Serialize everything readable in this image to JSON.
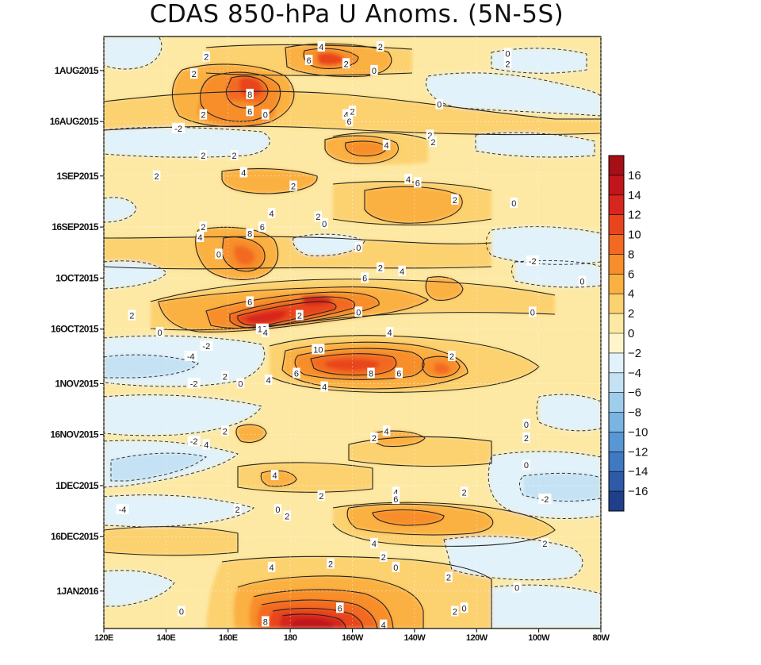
{
  "chart_data": {
    "type": "heatmap",
    "title": "CDAS 850-hPa U Anoms. (5N-5S)",
    "xlabel": "",
    "ylabel": "",
    "x_ticks": [
      "120E",
      "140E",
      "160E",
      "180",
      "160W",
      "140W",
      "120W",
      "100W",
      "80W"
    ],
    "x_range_deg_east": [
      120,
      280
    ],
    "y_ticks": [
      "1AUG2015",
      "16AUG2015",
      "1SEP2015",
      "16SEP2015",
      "1OCT2015",
      "16OCT2015",
      "1NOV2015",
      "16NOV2015",
      "1DEC2015",
      "16DEC2015",
      "1JAN2016"
    ],
    "y_range": [
      "2015-07-22",
      "2016-01-12"
    ],
    "colorbar": {
      "levels": [
        16,
        14,
        12,
        10,
        8,
        6,
        4,
        2,
        0,
        -2,
        -4,
        -6,
        -8,
        -10,
        -12,
        -14,
        -16
      ],
      "colors": [
        "#a50f15",
        "#c0161b",
        "#d7261e",
        "#e8451f",
        "#f26a22",
        "#f78e2c",
        "#fbb042",
        "#fcd170",
        "#fde9a4",
        "#fff5cc",
        "#e2f2fa",
        "#c4e2f3",
        "#9fcdec",
        "#79b4e2",
        "#5897d4",
        "#3f79c2",
        "#2e5aa8",
        "#203f8b"
      ]
    },
    "contour_labels": [
      {
        "text": "4",
        "lon": 190,
        "date": "2015-07-25"
      },
      {
        "text": "2",
        "lon": 209,
        "date": "2015-07-25"
      },
      {
        "text": "2",
        "lon": 153,
        "date": "2015-07-28"
      },
      {
        "text": "6",
        "lon": 186,
        "date": "2015-07-29"
      },
      {
        "text": "0",
        "lon": 250,
        "date": "2015-07-27"
      },
      {
        "text": "2",
        "lon": 250,
        "date": "2015-07-30"
      },
      {
        "text": "2",
        "lon": 198,
        "date": "2015-07-30"
      },
      {
        "text": "0",
        "lon": 207,
        "date": "2015-08-01"
      },
      {
        "text": "2",
        "lon": 149,
        "date": "2015-08-02"
      },
      {
        "text": "8",
        "lon": 167,
        "date": "2015-08-08"
      },
      {
        "text": "0",
        "lon": 228,
        "date": "2015-08-11"
      },
      {
        "text": "6",
        "lon": 167,
        "date": "2015-08-13"
      },
      {
        "text": "0",
        "lon": 172,
        "date": "2015-08-14"
      },
      {
        "text": "2",
        "lon": 152,
        "date": "2015-08-14"
      },
      {
        "text": "4",
        "lon": 198,
        "date": "2015-08-14"
      },
      {
        "text": "2",
        "lon": 200,
        "date": "2015-08-13"
      },
      {
        "text": "6",
        "lon": 199,
        "date": "2015-08-16"
      },
      {
        "text": "-2",
        "lon": 144,
        "date": "2015-08-18"
      },
      {
        "text": "2",
        "lon": 225,
        "date": "2015-08-20"
      },
      {
        "text": "2",
        "lon": 226,
        "date": "2015-08-22"
      },
      {
        "text": "4",
        "lon": 211,
        "date": "2015-08-23"
      },
      {
        "text": "2",
        "lon": 152,
        "date": "2015-08-26"
      },
      {
        "text": "2",
        "lon": 162,
        "date": "2015-08-26"
      },
      {
        "text": "4",
        "lon": 165,
        "date": "2015-08-31"
      },
      {
        "text": "2",
        "lon": 137,
        "date": "2015-09-01"
      },
      {
        "text": "4",
        "lon": 218,
        "date": "2015-09-02"
      },
      {
        "text": "6",
        "lon": 221,
        "date": "2015-09-03"
      },
      {
        "text": "2",
        "lon": 181,
        "date": "2015-09-04"
      },
      {
        "text": "2",
        "lon": 233,
        "date": "2015-09-08"
      },
      {
        "text": "0",
        "lon": 252,
        "date": "2015-09-09"
      },
      {
        "text": "4",
        "lon": 174,
        "date": "2015-09-12"
      },
      {
        "text": "2",
        "lon": 189,
        "date": "2015-09-13"
      },
      {
        "text": "0",
        "lon": 191,
        "date": "2015-09-15"
      },
      {
        "text": "6",
        "lon": 171,
        "date": "2015-09-16"
      },
      {
        "text": "8",
        "lon": 167,
        "date": "2015-09-18"
      },
      {
        "text": "2",
        "lon": 152,
        "date": "2015-09-16"
      },
      {
        "text": "4",
        "lon": 151,
        "date": "2015-09-19"
      },
      {
        "text": "0",
        "lon": 202,
        "date": "2015-09-22"
      },
      {
        "text": "0",
        "lon": 157,
        "date": "2015-09-24"
      },
      {
        "text": "-2",
        "lon": 258,
        "date": "2015-09-26"
      },
      {
        "text": "2",
        "lon": 209,
        "date": "2015-09-28"
      },
      {
        "text": "4",
        "lon": 216,
        "date": "2015-09-29"
      },
      {
        "text": "6",
        "lon": 204,
        "date": "2015-10-01"
      },
      {
        "text": "0",
        "lon": 274,
        "date": "2015-10-02"
      },
      {
        "text": "6",
        "lon": 167,
        "date": "2015-10-08"
      },
      {
        "text": "0",
        "lon": 202,
        "date": "2015-10-11"
      },
      {
        "text": "2",
        "lon": 183,
        "date": "2015-10-12"
      },
      {
        "text": "0",
        "lon": 258,
        "date": "2015-10-11"
      },
      {
        "text": "2",
        "lon": 129,
        "date": "2015-10-12"
      },
      {
        "text": "10",
        "lon": 171,
        "date": "2015-10-16"
      },
      {
        "text": "4",
        "lon": 172,
        "date": "2015-10-17"
      },
      {
        "text": "0",
        "lon": 138,
        "date": "2015-10-17"
      },
      {
        "text": "4",
        "lon": 212,
        "date": "2015-10-17"
      },
      {
        "text": "-2",
        "lon": 153,
        "date": "2015-10-21"
      },
      {
        "text": "10",
        "lon": 189,
        "date": "2015-10-22"
      },
      {
        "text": "2",
        "lon": 232,
        "date": "2015-10-24"
      },
      {
        "text": "-4",
        "lon": 148,
        "date": "2015-10-24"
      },
      {
        "text": "8",
        "lon": 206,
        "date": "2015-10-29"
      },
      {
        "text": "6",
        "lon": 182,
        "date": "2015-10-29"
      },
      {
        "text": "6",
        "lon": 215,
        "date": "2015-10-29"
      },
      {
        "text": "2",
        "lon": 159,
        "date": "2015-10-30"
      },
      {
        "text": "0",
        "lon": 164,
        "date": "2015-11-01"
      },
      {
        "text": "4",
        "lon": 173,
        "date": "2015-10-31"
      },
      {
        "text": "-2",
        "lon": 149,
        "date": "2015-11-01"
      },
      {
        "text": "4",
        "lon": 191,
        "date": "2015-11-02"
      },
      {
        "text": "0",
        "lon": 256,
        "date": "2015-11-13"
      },
      {
        "text": "2",
        "lon": 159,
        "date": "2015-11-15"
      },
      {
        "text": "4",
        "lon": 211,
        "date": "2015-11-15"
      },
      {
        "text": "2",
        "lon": 207,
        "date": "2015-11-17"
      },
      {
        "text": "2",
        "lon": 256,
        "date": "2015-11-17"
      },
      {
        "text": "-2",
        "lon": 149,
        "date": "2015-11-18"
      },
      {
        "text": "4",
        "lon": 153,
        "date": "2015-11-19"
      },
      {
        "text": "0",
        "lon": 256,
        "date": "2015-11-25"
      },
      {
        "text": "4",
        "lon": 175,
        "date": "2015-11-28"
      },
      {
        "text": "2",
        "lon": 190,
        "date": "2015-12-04"
      },
      {
        "text": "2",
        "lon": 236,
        "date": "2015-12-03"
      },
      {
        "text": "4",
        "lon": 214,
        "date": "2015-12-03"
      },
      {
        "text": "-2",
        "lon": 262,
        "date": "2015-12-05"
      },
      {
        "text": "6",
        "lon": 214,
        "date": "2015-12-05"
      },
      {
        "text": "-4",
        "lon": 126,
        "date": "2015-12-08"
      },
      {
        "text": "2",
        "lon": 163,
        "date": "2015-12-08"
      },
      {
        "text": "0",
        "lon": 176,
        "date": "2015-12-08"
      },
      {
        "text": "2",
        "lon": 179,
        "date": "2015-12-10"
      },
      {
        "text": "4",
        "lon": 207,
        "date": "2015-12-18"
      },
      {
        "text": "2",
        "lon": 262,
        "date": "2015-12-18"
      },
      {
        "text": "2",
        "lon": 210,
        "date": "2015-12-22"
      },
      {
        "text": "2",
        "lon": 193,
        "date": "2015-12-24"
      },
      {
        "text": "4",
        "lon": 174,
        "date": "2015-12-25"
      },
      {
        "text": "0",
        "lon": 214,
        "date": "2015-12-25"
      },
      {
        "text": "2",
        "lon": 231,
        "date": "2015-12-28"
      },
      {
        "text": "0",
        "lon": 253,
        "date": "2015-12-31"
      },
      {
        "text": "6",
        "lon": 196,
        "date": "2016-01-06"
      },
      {
        "text": "0",
        "lon": 236,
        "date": "2016-01-06"
      },
      {
        "text": "2",
        "lon": 233,
        "date": "2016-01-07"
      },
      {
        "text": "0",
        "lon": 145,
        "date": "2016-01-07"
      },
      {
        "text": "8",
        "lon": 172,
        "date": "2016-01-10"
      },
      {
        "text": "4",
        "lon": 210,
        "date": "2016-01-11"
      }
    ]
  }
}
